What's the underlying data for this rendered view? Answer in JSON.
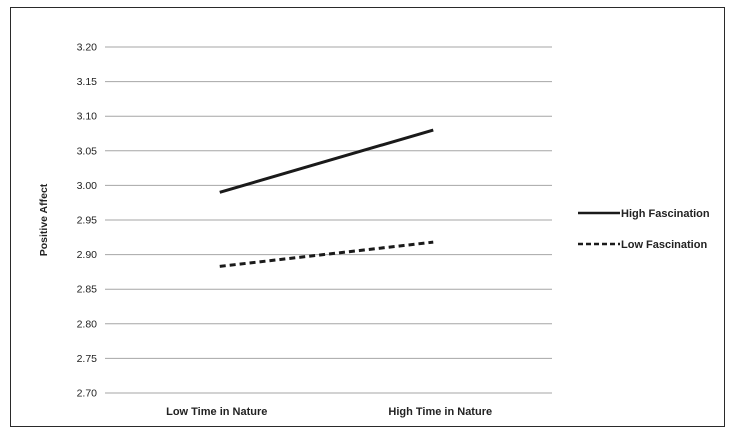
{
  "chart_data": {
    "type": "line",
    "title": "",
    "xlabel": "",
    "ylabel": "Positive Affect",
    "categories": [
      "Low Time in Nature",
      "High  Time in Nature"
    ],
    "ylim": [
      2.7,
      3.2
    ],
    "yticks": [
      "3.20",
      "3.15",
      "3.10",
      "3.05",
      "3.00",
      "2.95",
      "2.90",
      "2.85",
      "2.80",
      "2.75",
      "2.70"
    ],
    "grid": true,
    "legend_position": "right",
    "series": [
      {
        "name": "High Fascination",
        "values": [
          2.99,
          3.08
        ],
        "style": "solid",
        "color": "#1a1a1a"
      },
      {
        "name": "Low Fascination",
        "values": [
          2.883,
          2.918
        ],
        "style": "dashed",
        "color": "#1a1a1a"
      }
    ]
  }
}
